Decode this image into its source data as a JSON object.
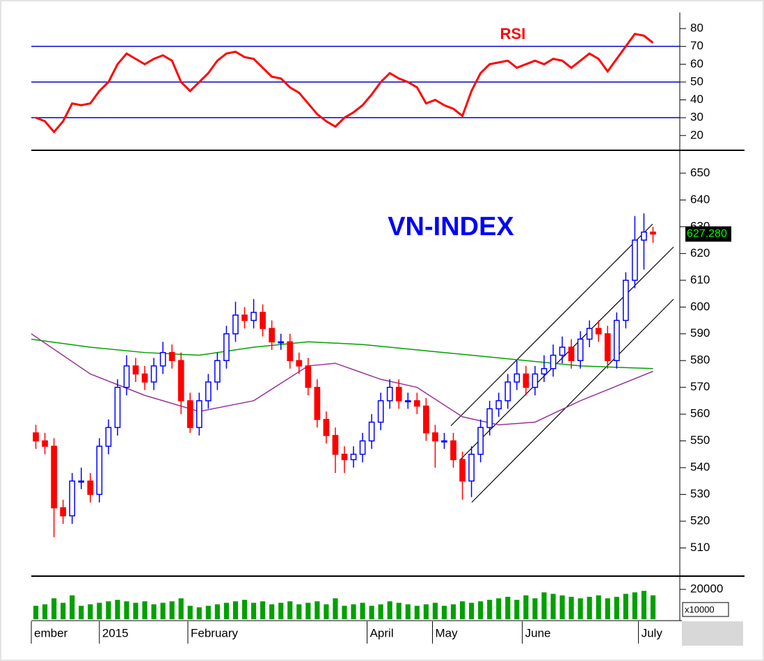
{
  "chart_data": {
    "type": "candlestick",
    "title": "VN-INDEX",
    "open": [
      553,
      550,
      548,
      525,
      522,
      535,
      535,
      530,
      548,
      555,
      570,
      578,
      575,
      572,
      578,
      583,
      580,
      565,
      555,
      565,
      572,
      580,
      590,
      597,
      595,
      598,
      592,
      587,
      587,
      580,
      578,
      570,
      558,
      552,
      545,
      543,
      545,
      550,
      557,
      565,
      570,
      565,
      565,
      563,
      553,
      550,
      550,
      543,
      535,
      545,
      555,
      562,
      565,
      572,
      575,
      570,
      575,
      577,
      582,
      585,
      580,
      588,
      592,
      590,
      580,
      595,
      610,
      625,
      628
    ],
    "high": [
      556,
      553,
      551,
      528,
      538,
      540,
      538,
      551,
      558,
      573,
      582,
      581,
      578,
      581,
      587,
      586,
      583,
      568,
      568,
      575,
      583,
      593,
      602,
      600,
      603,
      601,
      595,
      590,
      590,
      583,
      581,
      573,
      561,
      555,
      548,
      548,
      553,
      560,
      568,
      573,
      573,
      568,
      568,
      566,
      556,
      553,
      553,
      546,
      548,
      558,
      565,
      568,
      575,
      580,
      578,
      578,
      582,
      586,
      589,
      588,
      591,
      595,
      595,
      593,
      598,
      613,
      634,
      635,
      630
    ],
    "low": [
      547,
      545,
      514,
      519,
      519,
      532,
      527,
      527,
      545,
      552,
      567,
      572,
      569,
      569,
      575,
      577,
      560,
      553,
      552,
      562,
      569,
      577,
      587,
      592,
      592,
      589,
      584,
      584,
      577,
      575,
      567,
      555,
      549,
      538,
      538,
      540,
      542,
      547,
      554,
      562,
      562,
      562,
      560,
      550,
      540,
      547,
      540,
      528,
      529,
      542,
      552,
      559,
      562,
      569,
      567,
      567,
      572,
      574,
      579,
      577,
      577,
      585,
      587,
      577,
      577,
      592,
      607,
      614,
      624
    ],
    "close": [
      550,
      548,
      525,
      522,
      535,
      535,
      530,
      548,
      555,
      570,
      578,
      575,
      572,
      578,
      583,
      580,
      565,
      555,
      565,
      572,
      580,
      590,
      597,
      595,
      598,
      592,
      587,
      587,
      580,
      578,
      570,
      558,
      552,
      545,
      543,
      545,
      550,
      557,
      565,
      570,
      565,
      565,
      563,
      553,
      550,
      550,
      543,
      535,
      545,
      555,
      562,
      565,
      572,
      575,
      570,
      575,
      577,
      582,
      585,
      580,
      588,
      592,
      590,
      580,
      595,
      610,
      625,
      628,
      627.28
    ],
    "last_value_label": "627.280",
    "up_color": "#0000ff",
    "down_color": "#ff0000",
    "ylim": [
      500,
      657
    ],
    "yticks": [
      510,
      520,
      530,
      540,
      550,
      560,
      570,
      580,
      590,
      600,
      610,
      620,
      630,
      640,
      650
    ],
    "xlim": [
      -0.5,
      68.5
    ],
    "xticks": [
      {
        "value": -0.5,
        "label": "ember"
      },
      {
        "value": 7.0,
        "label": "2015"
      },
      {
        "value": 16.75,
        "label": "February"
      },
      {
        "value": 36.5,
        "label": "April"
      },
      {
        "value": 43.7,
        "label": "May"
      },
      {
        "value": 53.6,
        "label": "June"
      },
      {
        "value": 66.4,
        "label": "July"
      }
    ],
    "overlays": [
      {
        "color": "#00a000",
        "x": [
          -0.5,
          6,
          12,
          18,
          24,
          30,
          36,
          42,
          48,
          54,
          60,
          68
        ],
        "values": [
          588,
          585,
          583,
          582,
          585,
          587,
          586,
          584,
          582,
          580,
          578,
          577
        ]
      },
      {
        "color": "#993399",
        "x": [
          -0.5,
          6,
          12,
          18,
          24,
          30,
          33,
          38,
          42,
          47,
          51,
          55,
          60,
          68
        ],
        "values": [
          590,
          575,
          567,
          561,
          565,
          578,
          579,
          573,
          570,
          559,
          556,
          557,
          565,
          576
        ]
      }
    ],
    "rsi": {
      "title": "RSI",
      "color": "#ff0000",
      "level_color": "#0000cc",
      "levels": [
        30,
        50,
        70
      ],
      "ylim": [
        12.5,
        89
      ],
      "yticks": [
        20,
        30,
        40,
        50,
        60,
        70,
        80
      ],
      "values": [
        30,
        28,
        22,
        28,
        38,
        37,
        38,
        45,
        50,
        60,
        66,
        63,
        60,
        63,
        65,
        62,
        50,
        45,
        50,
        55,
        62,
        66,
        67,
        64,
        63,
        58,
        53,
        52,
        47,
        44,
        38,
        32,
        28,
        25,
        30,
        33,
        37,
        43,
        50,
        55,
        52,
        50,
        47,
        38,
        40,
        37,
        35,
        31,
        45,
        55,
        60,
        61,
        62,
        58,
        60,
        62,
        60,
        63,
        62,
        58,
        62,
        66,
        63,
        56,
        63,
        70,
        77,
        76,
        72
      ]
    },
    "volume": {
      "color": "#00a000",
      "unit_label": "x10000",
      "ylim": [
        0,
        27000
      ],
      "yticks": [
        20000
      ],
      "values": [
        9000,
        10000,
        14000,
        11000,
        16000,
        9000,
        10000,
        11000,
        12000,
        13000,
        12000,
        11000,
        12000,
        10000,
        11000,
        12000,
        14000,
        9000,
        8000,
        9000,
        10000,
        11000,
        12000,
        13000,
        11000,
        12000,
        10000,
        11000,
        12000,
        10000,
        11000,
        12000,
        10000,
        14000,
        9000,
        10000,
        11000,
        9000,
        10000,
        12000,
        11000,
        10000,
        9000,
        10000,
        11000,
        9000,
        10000,
        12000,
        11000,
        12000,
        13000,
        14000,
        15000,
        13000,
        16000,
        14000,
        18000,
        17000,
        16000,
        15000,
        14000,
        15000,
        16000,
        14000,
        15000,
        17000,
        18000,
        19000,
        16000
      ]
    }
  }
}
